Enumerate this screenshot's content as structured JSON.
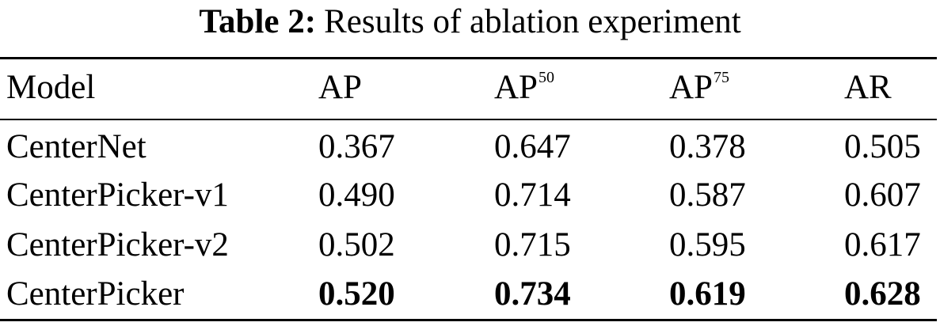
{
  "caption": {
    "label": "Table 2:",
    "text": "Results of ablation experiment"
  },
  "table": {
    "headers": {
      "model": "Model",
      "ap": "AP",
      "ap50_base": "AP",
      "ap50_sup": "50",
      "ap75_base": "AP",
      "ap75_sup": "75",
      "ar": "AR"
    },
    "rows": [
      {
        "model": "CenterNet",
        "ap": "0.367",
        "ap50": "0.647",
        "ap75": "0.378",
        "ar": "0.505",
        "bold": false
      },
      {
        "model": "CenterPicker-v1",
        "ap": "0.490",
        "ap50": "0.714",
        "ap75": "0.587",
        "ar": "0.607",
        "bold": false
      },
      {
        "model": "CenterPicker-v2",
        "ap": "0.502",
        "ap50": "0.715",
        "ap75": "0.595",
        "ar": "0.617",
        "bold": false
      },
      {
        "model": "CenterPicker",
        "ap": "0.520",
        "ap50": "0.734",
        "ap75": "0.619",
        "ar": "0.628",
        "bold": true
      }
    ]
  }
}
